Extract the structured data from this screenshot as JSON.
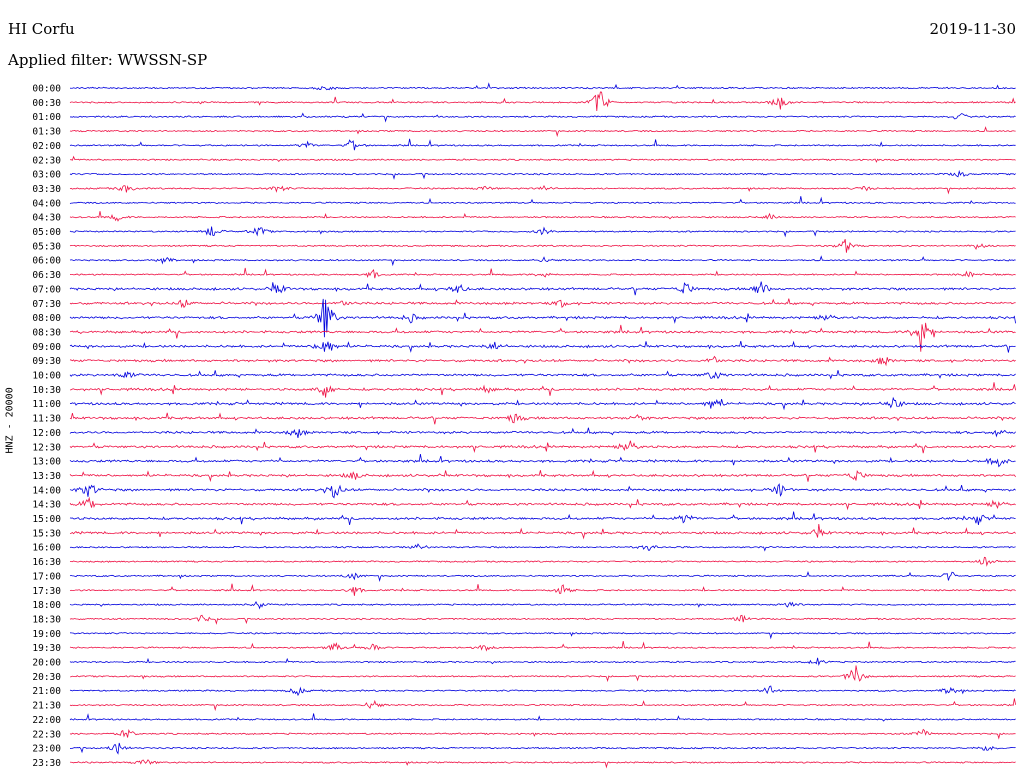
{
  "header": {
    "station": "HI Corfu",
    "date": "2019-11-30",
    "filter": "Applied filter: WWSSN-SP"
  },
  "chart_data": {
    "type": "line",
    "ylabel": "HNZ - 20000",
    "trace_colors": [
      "#0000dd",
      "#ee1144"
    ],
    "rows": [
      "00:00",
      "00:30",
      "01:00",
      "01:30",
      "02:00",
      "02:30",
      "03:00",
      "03:30",
      "04:00",
      "04:30",
      "05:00",
      "05:30",
      "06:00",
      "06:30",
      "07:00",
      "07:30",
      "08:00",
      "08:30",
      "09:00",
      "09:30",
      "10:00",
      "10:30",
      "11:00",
      "11:30",
      "12:00",
      "12:30",
      "13:00",
      "13:30",
      "14:00",
      "14:30",
      "15:00",
      "15:30",
      "16:00",
      "16:30",
      "17:00",
      "17:30",
      "18:00",
      "18:30",
      "19:00",
      "19:30",
      "20:00",
      "20:30",
      "21:00",
      "21:30",
      "22:00",
      "22:30",
      "23:00",
      "23:30"
    ]
  }
}
